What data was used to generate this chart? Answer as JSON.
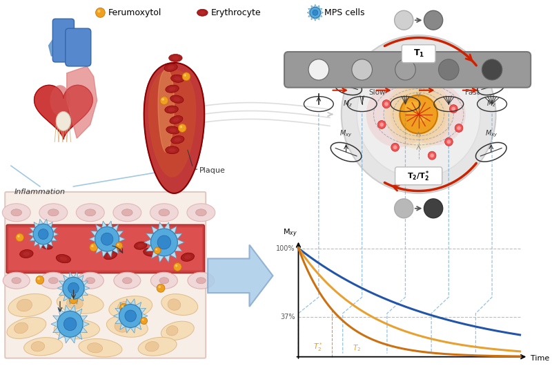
{
  "background_color": "#FFFFFF",
  "decay_curve_blue": "#2255AA",
  "decay_curve_orange1": "#E8A030",
  "decay_curve_orange2": "#CC7010",
  "arrow_red": "#CC2200",
  "arrow_blue": "#5599CC",
  "arrow_gray": "#777777",
  "mri_outer_color": "#E0E0E0",
  "mri_inner_color": "#EBEBEB",
  "mri_ring_color": "#D8D8D8",
  "ferro_orange": "#F0A020",
  "ferro_edge": "#CC7700",
  "rbc_color": "#AA2020",
  "rbc_edge": "#880000",
  "cell_blue": "#55AADD",
  "cell_edge": "#3377AA",
  "cell_body": "#88CCEE",
  "vessel_dark": "#C03838",
  "vessel_inner": "#D85040",
  "vessel_highlight": "#E8A070",
  "heart_red": "#CC3030",
  "heart_dark": "#AA0000",
  "heart_blue": "#5599DD",
  "bar_gray": "#888888",
  "label_mxy": "M$_{xy}$",
  "label_100": "100%",
  "label_37": "37%",
  "label_time": "Time",
  "label_t1": "$\\mathbf{T_1}$",
  "label_t2": "$\\mathbf{T_2/T_2^*}$",
  "label_mz_left": "$M_z$",
  "label_mz_right": "$M_z$",
  "label_mxy_left": "$M_{xy}$",
  "label_mxy_right": "$M_{xy}$",
  "label_slow": "Slow",
  "label_fast": "Fast",
  "label_inflammation": "Inflammation",
  "label_plaque": "Plaque",
  "legend_ferro": "Ferumoxytol",
  "legend_eryth": "Erythrocyte",
  "legend_mps": "MPS cells"
}
